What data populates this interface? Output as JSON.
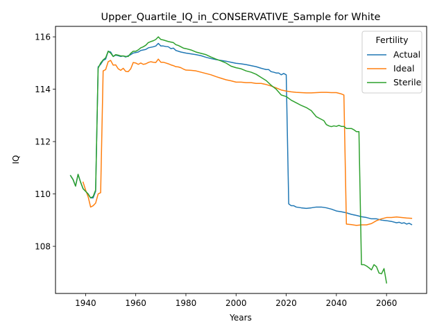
{
  "chart_data": {
    "type": "line",
    "title": "Upper_Quartile_IQ_in_CONSERVATIVE_Sample for White",
    "xlabel": "Years",
    "ylabel": "IQ",
    "xlim": [
      1928,
      2076
    ],
    "ylim": [
      106.2,
      116.4
    ],
    "xticks": [
      1940,
      1960,
      1980,
      2000,
      2020,
      2040,
      2060
    ],
    "yticks": [
      108,
      110,
      112,
      114,
      116
    ],
    "grid": false,
    "legend": {
      "title": "Fertility",
      "position": "top-right"
    },
    "series": [
      {
        "name": "Actual",
        "color": "#1f77b4",
        "points": [
          [
            1934,
            110.7
          ],
          [
            1935,
            110.55
          ],
          [
            1936,
            110.3
          ],
          [
            1937,
            110.75
          ],
          [
            1938,
            110.45
          ],
          [
            1939,
            110.2
          ],
          [
            1940,
            110.1
          ],
          [
            1941,
            110.0
          ],
          [
            1942,
            109.85
          ],
          [
            1943,
            109.85
          ],
          [
            1944,
            110.1
          ],
          [
            1945,
            114.85
          ],
          [
            1946,
            114.95
          ],
          [
            1947,
            115.1
          ],
          [
            1948,
            115.15
          ],
          [
            1949,
            115.45
          ],
          [
            1950,
            115.42
          ],
          [
            1951,
            115.25
          ],
          [
            1952,
            115.3
          ],
          [
            1953,
            115.28
          ],
          [
            1954,
            115.25
          ],
          [
            1955,
            115.27
          ],
          [
            1956,
            115.23
          ],
          [
            1957,
            115.28
          ],
          [
            1958,
            115.32
          ],
          [
            1959,
            115.38
          ],
          [
            1960,
            115.4
          ],
          [
            1961,
            115.42
          ],
          [
            1962,
            115.48
          ],
          [
            1963,
            115.5
          ],
          [
            1964,
            115.52
          ],
          [
            1965,
            115.58
          ],
          [
            1966,
            115.6
          ],
          [
            1967,
            115.62
          ],
          [
            1968,
            115.65
          ],
          [
            1969,
            115.75
          ],
          [
            1970,
            115.65
          ],
          [
            1971,
            115.65
          ],
          [
            1972,
            115.63
          ],
          [
            1973,
            115.62
          ],
          [
            1974,
            115.55
          ],
          [
            1975,
            115.57
          ],
          [
            1976,
            115.48
          ],
          [
            1977,
            115.45
          ],
          [
            1978,
            115.42
          ],
          [
            1979,
            115.4
          ],
          [
            1980,
            115.38
          ],
          [
            1982,
            115.35
          ],
          [
            1984,
            115.32
          ],
          [
            1986,
            115.28
          ],
          [
            1988,
            115.22
          ],
          [
            1990,
            115.17
          ],
          [
            1992,
            115.13
          ],
          [
            1994,
            115.1
          ],
          [
            1996,
            115.07
          ],
          [
            1998,
            115.03
          ],
          [
            2000,
            114.99
          ],
          [
            2002,
            114.97
          ],
          [
            2004,
            114.94
          ],
          [
            2006,
            114.9
          ],
          [
            2008,
            114.86
          ],
          [
            2010,
            114.8
          ],
          [
            2012,
            114.75
          ],
          [
            2013,
            114.75
          ],
          [
            2014,
            114.67
          ],
          [
            2015,
            114.65
          ],
          [
            2016,
            114.62
          ],
          [
            2017,
            114.62
          ],
          [
            2018,
            114.55
          ],
          [
            2019,
            114.6
          ],
          [
            2020,
            114.55
          ],
          [
            2021,
            109.62
          ],
          [
            2022,
            109.55
          ],
          [
            2023,
            109.55
          ],
          [
            2024,
            109.5
          ],
          [
            2026,
            109.47
          ],
          [
            2028,
            109.45
          ],
          [
            2030,
            109.47
          ],
          [
            2032,
            109.5
          ],
          [
            2034,
            109.5
          ],
          [
            2036,
            109.47
          ],
          [
            2038,
            109.42
          ],
          [
            2040,
            109.35
          ],
          [
            2042,
            109.32
          ],
          [
            2044,
            109.28
          ],
          [
            2046,
            109.22
          ],
          [
            2048,
            109.18
          ],
          [
            2050,
            109.13
          ],
          [
            2052,
            109.1
          ],
          [
            2054,
            109.05
          ],
          [
            2056,
            109.05
          ],
          [
            2058,
            109.0
          ],
          [
            2060,
            108.98
          ],
          [
            2062,
            108.95
          ],
          [
            2064,
            108.9
          ],
          [
            2065,
            108.92
          ],
          [
            2066,
            108.88
          ],
          [
            2067,
            108.9
          ],
          [
            2068,
            108.85
          ],
          [
            2069,
            108.88
          ],
          [
            2070,
            108.83
          ]
        ]
      },
      {
        "name": "Ideal",
        "color": "#ff7f0e",
        "points": [
          [
            1939,
            110.45
          ],
          [
            1940,
            110.15
          ],
          [
            1941,
            109.9
          ],
          [
            1942,
            109.5
          ],
          [
            1943,
            109.55
          ],
          [
            1944,
            109.65
          ],
          [
            1945,
            110.0
          ],
          [
            1946,
            110.05
          ],
          [
            1947,
            114.7
          ],
          [
            1948,
            114.75
          ],
          [
            1949,
            115.05
          ],
          [
            1950,
            115.1
          ],
          [
            1951,
            114.92
          ],
          [
            1952,
            114.93
          ],
          [
            1953,
            114.78
          ],
          [
            1954,
            114.72
          ],
          [
            1955,
            114.8
          ],
          [
            1956,
            114.68
          ],
          [
            1957,
            114.67
          ],
          [
            1958,
            114.78
          ],
          [
            1959,
            115.02
          ],
          [
            1960,
            115.0
          ],
          [
            1961,
            114.95
          ],
          [
            1962,
            115.0
          ],
          [
            1963,
            114.95
          ],
          [
            1964,
            114.97
          ],
          [
            1965,
            115.02
          ],
          [
            1966,
            115.05
          ],
          [
            1967,
            115.03
          ],
          [
            1968,
            115.02
          ],
          [
            1969,
            115.15
          ],
          [
            1970,
            115.03
          ],
          [
            1971,
            115.03
          ],
          [
            1972,
            115.0
          ],
          [
            1973,
            114.97
          ],
          [
            1974,
            114.93
          ],
          [
            1975,
            114.9
          ],
          [
            1976,
            114.86
          ],
          [
            1977,
            114.85
          ],
          [
            1978,
            114.82
          ],
          [
            1979,
            114.77
          ],
          [
            1980,
            114.73
          ],
          [
            1982,
            114.72
          ],
          [
            1984,
            114.7
          ],
          [
            1986,
            114.65
          ],
          [
            1988,
            114.6
          ],
          [
            1990,
            114.55
          ],
          [
            1992,
            114.48
          ],
          [
            1994,
            114.42
          ],
          [
            1996,
            114.36
          ],
          [
            1998,
            114.32
          ],
          [
            2000,
            114.27
          ],
          [
            2002,
            114.27
          ],
          [
            2004,
            114.25
          ],
          [
            2006,
            114.25
          ],
          [
            2008,
            114.22
          ],
          [
            2010,
            114.22
          ],
          [
            2012,
            114.18
          ],
          [
            2014,
            114.12
          ],
          [
            2016,
            114.05
          ],
          [
            2018,
            113.97
          ],
          [
            2020,
            113.93
          ],
          [
            2022,
            113.9
          ],
          [
            2024,
            113.88
          ],
          [
            2026,
            113.87
          ],
          [
            2028,
            113.86
          ],
          [
            2030,
            113.86
          ],
          [
            2032,
            113.87
          ],
          [
            2034,
            113.88
          ],
          [
            2036,
            113.88
          ],
          [
            2038,
            113.87
          ],
          [
            2040,
            113.87
          ],
          [
            2042,
            113.82
          ],
          [
            2043,
            113.78
          ],
          [
            2044,
            108.85
          ],
          [
            2046,
            108.83
          ],
          [
            2048,
            108.8
          ],
          [
            2050,
            108.82
          ],
          [
            2052,
            108.82
          ],
          [
            2054,
            108.87
          ],
          [
            2056,
            108.98
          ],
          [
            2058,
            109.05
          ],
          [
            2060,
            109.1
          ],
          [
            2062,
            109.1
          ],
          [
            2064,
            109.12
          ],
          [
            2066,
            109.1
          ],
          [
            2068,
            109.08
          ],
          [
            2070,
            109.07
          ]
        ]
      },
      {
        "name": "Sterile",
        "color": "#2ca02c",
        "points": [
          [
            1934,
            110.7
          ],
          [
            1935,
            110.55
          ],
          [
            1936,
            110.3
          ],
          [
            1937,
            110.75
          ],
          [
            1938,
            110.45
          ],
          [
            1939,
            110.2
          ],
          [
            1940,
            110.1
          ],
          [
            1941,
            110.0
          ],
          [
            1942,
            109.85
          ],
          [
            1943,
            109.9
          ],
          [
            1944,
            110.15
          ],
          [
            1945,
            114.8
          ],
          [
            1946,
            115.0
          ],
          [
            1947,
            115.12
          ],
          [
            1948,
            115.2
          ],
          [
            1949,
            115.45
          ],
          [
            1950,
            115.38
          ],
          [
            1951,
            115.25
          ],
          [
            1952,
            115.32
          ],
          [
            1953,
            115.3
          ],
          [
            1954,
            115.27
          ],
          [
            1955,
            115.27
          ],
          [
            1956,
            115.25
          ],
          [
            1957,
            115.25
          ],
          [
            1958,
            115.37
          ],
          [
            1959,
            115.45
          ],
          [
            1960,
            115.45
          ],
          [
            1961,
            115.5
          ],
          [
            1962,
            115.58
          ],
          [
            1963,
            115.62
          ],
          [
            1964,
            115.68
          ],
          [
            1965,
            115.78
          ],
          [
            1966,
            115.82
          ],
          [
            1967,
            115.85
          ],
          [
            1968,
            115.9
          ],
          [
            1969,
            116.0
          ],
          [
            1970,
            115.9
          ],
          [
            1971,
            115.88
          ],
          [
            1972,
            115.85
          ],
          [
            1973,
            115.82
          ],
          [
            1974,
            115.8
          ],
          [
            1975,
            115.78
          ],
          [
            1976,
            115.7
          ],
          [
            1977,
            115.67
          ],
          [
            1978,
            115.62
          ],
          [
            1979,
            115.57
          ],
          [
            1980,
            115.55
          ],
          [
            1982,
            115.5
          ],
          [
            1984,
            115.42
          ],
          [
            1986,
            115.37
          ],
          [
            1988,
            115.32
          ],
          [
            1990,
            115.23
          ],
          [
            1992,
            115.15
          ],
          [
            1994,
            115.08
          ],
          [
            1996,
            115.0
          ],
          [
            1998,
            114.88
          ],
          [
            2000,
            114.82
          ],
          [
            2002,
            114.78
          ],
          [
            2004,
            114.7
          ],
          [
            2006,
            114.65
          ],
          [
            2008,
            114.57
          ],
          [
            2010,
            114.45
          ],
          [
            2012,
            114.33
          ],
          [
            2014,
            114.15
          ],
          [
            2016,
            114.0
          ],
          [
            2018,
            113.78
          ],
          [
            2020,
            113.72
          ],
          [
            2022,
            113.58
          ],
          [
            2024,
            113.48
          ],
          [
            2026,
            113.38
          ],
          [
            2028,
            113.3
          ],
          [
            2030,
            113.18
          ],
          [
            2032,
            112.95
          ],
          [
            2034,
            112.85
          ],
          [
            2035,
            112.8
          ],
          [
            2036,
            112.65
          ],
          [
            2037,
            112.6
          ],
          [
            2038,
            112.57
          ],
          [
            2039,
            112.6
          ],
          [
            2040,
            112.58
          ],
          [
            2041,
            112.62
          ],
          [
            2042,
            112.58
          ],
          [
            2043,
            112.58
          ],
          [
            2044,
            112.5
          ],
          [
            2045,
            112.5
          ],
          [
            2046,
            112.5
          ],
          [
            2047,
            112.45
          ],
          [
            2048,
            112.38
          ],
          [
            2049,
            112.38
          ],
          [
            2050,
            107.3
          ],
          [
            2051,
            107.3
          ],
          [
            2052,
            107.25
          ],
          [
            2053,
            107.18
          ],
          [
            2054,
            107.1
          ],
          [
            2055,
            107.3
          ],
          [
            2056,
            107.22
          ],
          [
            2057,
            106.98
          ],
          [
            2058,
            106.95
          ],
          [
            2059,
            107.15
          ],
          [
            2060,
            106.6
          ]
        ]
      }
    ]
  }
}
